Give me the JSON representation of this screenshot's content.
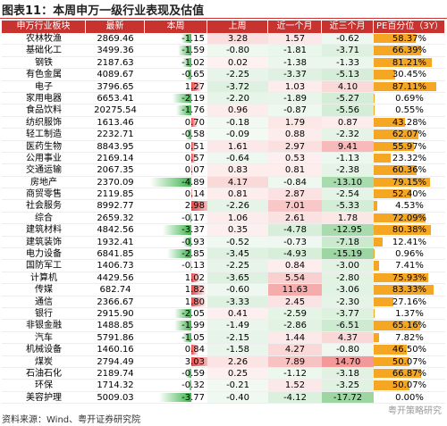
{
  "header": {
    "title": "图表11：本周申万一级行业表现及估值"
  },
  "table": {
    "columns": [
      "申万行业板块",
      "最新",
      "本周",
      "上周",
      "近一个月",
      "近三个月",
      "PE百分位（3Y）"
    ],
    "rows": [
      [
        "农林牧渔",
        "2869.46",
        "-1.15",
        "3.28",
        "1.57",
        "-0.62",
        "58.37%"
      ],
      [
        "基础化工",
        "3499.36",
        "-1.59",
        "-0.80",
        "-1.81",
        "-3.71",
        "66.39%"
      ],
      [
        "钢铁",
        "2187.63",
        "-1.02",
        "0.02",
        "-1.38",
        "-1.33",
        "81.21%"
      ],
      [
        "有色金属",
        "4089.67",
        "-0.65",
        "-2.25",
        "-3.37",
        "-5.13",
        "30.45%"
      ],
      [
        "电子",
        "3796.65",
        "1.27",
        "-3.72",
        "1.03",
        "4.10",
        "87.11%"
      ],
      [
        "家用电器",
        "6653.41",
        "-2.19",
        "-2.20",
        "-1.89",
        "-5.27",
        "0.69%"
      ],
      [
        "食品饮料",
        "20275.54",
        "-1.76",
        "0.96",
        "-0.87",
        "-5.56",
        "0.55%"
      ],
      [
        "纺织服饰",
        "1613.46",
        "0.70",
        "-0.18",
        "1.79",
        "0.87",
        "43.28%"
      ],
      [
        "轻工制造",
        "2232.71",
        "-0.58",
        "-0.09",
        "0.88",
        "-2.32",
        "62.07%"
      ],
      [
        "医药生物",
        "8843.95",
        "0.51",
        "1.61",
        "2.97",
        "9.41",
        "55.97%"
      ],
      [
        "公用事业",
        "2169.14",
        "0.57",
        "-0.64",
        "0.53",
        "-1.13",
        "23.32%"
      ],
      [
        "交通运输",
        "2067.35",
        "0.07",
        "0.83",
        "0.81",
        "-2.38",
        "60.36%"
      ],
      [
        "房地产",
        "2370.09",
        "-4.89",
        "4.17",
        "-0.84",
        "-13.10",
        "79.15%"
      ],
      [
        "商贸零售",
        "2119.85",
        "0.14",
        "0.81",
        "2.87",
        "-2.54",
        "52.40%"
      ],
      [
        "社会服务",
        "8992.77",
        "2.98",
        "-2.26",
        "7.01",
        "-5.33",
        "4.53%"
      ],
      [
        "综合",
        "2659.32",
        "-0.17",
        "1.06",
        "2.61",
        "1.78",
        "72.09%"
      ],
      [
        "建筑材料",
        "4842.56",
        "-3.37",
        "0.35",
        "-4.78",
        "-12.95",
        "80.38%"
      ],
      [
        "建筑装饰",
        "1932.41",
        "-0.93",
        "-0.52",
        "-0.73",
        "-7.18",
        "12.41%"
      ],
      [
        "电力设备",
        "6841.85",
        "-2.85",
        "-3.45",
        "-4.93",
        "-15.19",
        "0.96%"
      ],
      [
        "国防军工",
        "1406.73",
        "-0.13",
        "-2.25",
        "0.84",
        "-3.00",
        "7.41%"
      ],
      [
        "计算机",
        "4429.56",
        "1.02",
        "-3.65",
        "5.54",
        "-2.80",
        "75.93%"
      ],
      [
        "传媒",
        "682.74",
        "1.82",
        "-0.60",
        "11.63",
        "-3.06",
        "83.33%"
      ],
      [
        "通信",
        "2366.67",
        "1.80",
        "-3.33",
        "2.45",
        "-2.30",
        "27.16%"
      ],
      [
        "银行",
        "2915.90",
        "-2.05",
        "0.41",
        "-2.59",
        "-3.77",
        "1.37%"
      ],
      [
        "非银金融",
        "1488.85",
        "-1.99",
        "-1.49",
        "-2.86",
        "-6.51",
        "65.16%"
      ],
      [
        "汽车",
        "5791.86",
        "-1.05",
        "-2.15",
        "1.44",
        "4.37",
        "7.82%"
      ],
      [
        "机械设备",
        "1460.16",
        "0.84",
        "-1.58",
        "4.27",
        "-0.80",
        "46.50%"
      ],
      [
        "煤炭",
        "2794.49",
        "3.03",
        "2.26",
        "7.89",
        "14.70",
        "50.07%"
      ],
      [
        "石油石化",
        "2189.74",
        "-0.59",
        "0.25",
        "-1.12",
        "-3.18",
        "66.87%"
      ],
      [
        "环保",
        "1714.32",
        "-0.32",
        "-0.21",
        "1.52",
        "-3.25",
        "50.07%"
      ],
      [
        "美容护理",
        "5009.03",
        "-3.77",
        "-0.40",
        "-4.12",
        "-17.72",
        "0.00%"
      ]
    ]
  },
  "footer": {
    "source": "资料来源：Wind、粤开证券研究院",
    "watermark": "粤开策略研究"
  }
}
